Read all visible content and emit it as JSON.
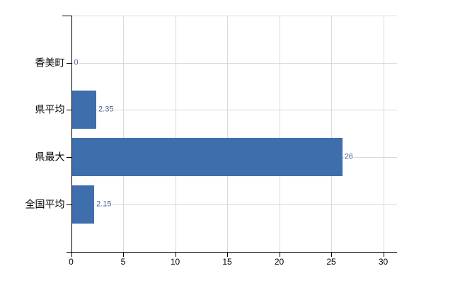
{
  "chart": {
    "background": "#ffffff",
    "bar_color": "#3e6eac",
    "axis_color": "#000000",
    "grid_color": "#d9d9d9",
    "category_label_color": "#000000",
    "x_tick_label_color": "#000000",
    "value_label_color": "#46628c"
  },
  "chart_data": {
    "type": "bar",
    "orientation": "horizontal",
    "title": "",
    "xlabel": "",
    "ylabel": "",
    "categories": [
      "香美町",
      "県平均",
      "県最大",
      "全国平均"
    ],
    "values": [
      0,
      2.35,
      26,
      2.15
    ],
    "value_labels": [
      "0",
      "2.35",
      "26",
      "2.15"
    ],
    "x_ticks": [
      0,
      5,
      10,
      15,
      20,
      25,
      30
    ],
    "xlim": [
      0,
      31.3
    ],
    "grid": true,
    "legend": false
  }
}
